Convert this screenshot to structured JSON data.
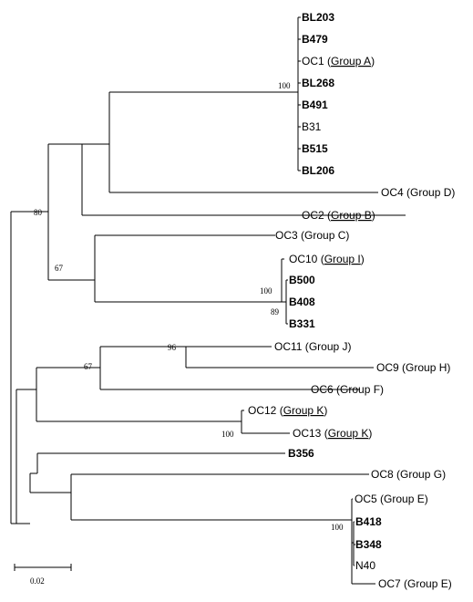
{
  "leaves": {
    "BL203": {
      "name": "BL203",
      "bold": true
    },
    "B479": {
      "name": "B479",
      "bold": true
    },
    "OC1": {
      "name": "OC1",
      "group": "Group A",
      "underline": true
    },
    "BL268": {
      "name": "BL268",
      "bold": true
    },
    "B491": {
      "name": "B491",
      "bold": true
    },
    "B31": {
      "name": "B31"
    },
    "B515": {
      "name": "B515",
      "bold": true
    },
    "BL206": {
      "name": "BL206",
      "bold": true
    },
    "OC4": {
      "name": "OC4",
      "group": "Group D"
    },
    "OC2": {
      "name": "OC2",
      "group": "Group B",
      "underline": true
    },
    "OC3": {
      "name": "OC3",
      "group": "Group C"
    },
    "OC10": {
      "name": "OC10",
      "group": "Group I",
      "underline": true
    },
    "B500": {
      "name": "B500",
      "bold": true
    },
    "B408": {
      "name": "B408",
      "bold": true
    },
    "B331": {
      "name": "B331",
      "bold": true
    },
    "OC11": {
      "name": "OC11",
      "group": "Group J"
    },
    "OC9": {
      "name": "OC9",
      "group": "Group H"
    },
    "OC6": {
      "name": "OC6",
      "group": "Group F"
    },
    "OC12": {
      "name": "OC12",
      "group": "Group K",
      "underline": true
    },
    "OC13": {
      "name": "OC13",
      "group": "Group K",
      "underline": true
    },
    "B356": {
      "name": "B356",
      "bold": true
    },
    "OC8": {
      "name": "OC8",
      "group": "Group G"
    },
    "OC5": {
      "name": "OC5",
      "group": "Group E"
    },
    "B418": {
      "name": "B418",
      "bold": true
    },
    "B348": {
      "name": "B348",
      "bold": true
    },
    "N40": {
      "name": "N40"
    },
    "OC7": {
      "name": "OC7",
      "group": "Group E"
    }
  },
  "bootstrap": {
    "groupA": "100",
    "root_upper": "80",
    "oc3_cluster": "67",
    "b500_cluster": "100",
    "b331_pair": "89",
    "j_h_pair": "96",
    "j_h_f": "67",
    "k_pair": "100",
    "e_cluster": "100"
  },
  "scale_bar": {
    "label": "0.02"
  }
}
